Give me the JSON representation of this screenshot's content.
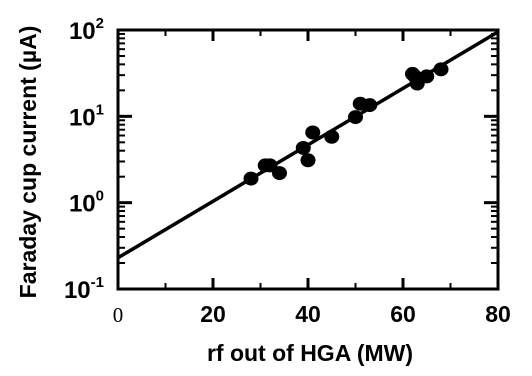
{
  "chart_data": {
    "type": "scatter",
    "xlabel": "rf out of HGA (MW)",
    "ylabel": "Faraday cup current (µA)",
    "xlim": [
      0,
      80
    ],
    "ylim": [
      0.1,
      100
    ],
    "yscale": "log",
    "x_ticks": [
      {
        "value": 0,
        "label": "0"
      },
      {
        "value": 20,
        "label": "20"
      },
      {
        "value": 40,
        "label": "40"
      },
      {
        "value": 60,
        "label": "60"
      },
      {
        "value": 80,
        "label": "80"
      }
    ],
    "y_ticks": [
      {
        "value": 0.1,
        "base": "10",
        "exp": "-1"
      },
      {
        "value": 1,
        "base": "10",
        "exp": "0"
      },
      {
        "value": 10,
        "base": "10",
        "exp": "1"
      },
      {
        "value": 100,
        "base": "10",
        "exp": "2"
      }
    ],
    "grid": false,
    "series": [
      {
        "x": [
          28,
          31,
          32,
          34,
          39,
          40,
          41,
          45,
          50,
          51,
          53,
          62,
          62.5,
          63,
          65,
          68
        ],
        "y": [
          1.9,
          2.7,
          2.7,
          2.2,
          4.3,
          3.1,
          6.5,
          5.8,
          9.8,
          14,
          13.5,
          31,
          29,
          24,
          29,
          35
        ]
      }
    ],
    "fit_line": {
      "x": [
        0,
        80
      ],
      "y": [
        0.23,
        95
      ]
    },
    "colors": {
      "marker": "#000000",
      "line": "#000000",
      "axes": "#000000"
    }
  }
}
